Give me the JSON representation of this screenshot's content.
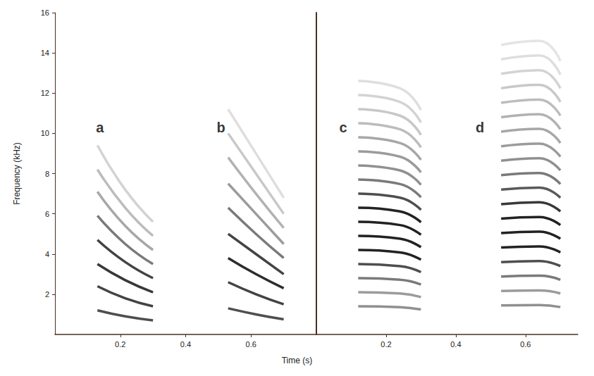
{
  "chart_data": [
    {
      "type": "line",
      "ylabel": "Frequency (kHz)",
      "xlabel": "Time (s)",
      "xlim": [
        0,
        0.8
      ],
      "xticks": [
        0.2,
        0.4,
        0.6
      ],
      "ylim": [
        0,
        16
      ],
      "yticks": [
        2,
        4,
        6,
        8,
        10,
        12,
        14,
        16
      ],
      "grid": false,
      "color": "#222222",
      "calls": [
        {
          "label": "a",
          "label_x": 0.1375,
          "label_y": 10.3,
          "x": [
            0.13,
            0.215,
            0.3
          ],
          "harmonics": [
            {
              "values": [
                1.2,
                0.9,
                0.7
              ],
              "level": 0.8
            },
            {
              "values": [
                2.4,
                1.8,
                1.4
              ],
              "level": 0.85
            },
            {
              "values": [
                3.5,
                2.7,
                2.1
              ],
              "level": 0.9
            },
            {
              "values": [
                4.7,
                3.6,
                2.8
              ],
              "level": 0.85
            },
            {
              "values": [
                5.9,
                4.5,
                3.5
              ],
              "level": 0.6
            },
            {
              "values": [
                7.1,
                5.4,
                4.2
              ],
              "level": 0.4
            },
            {
              "values": [
                8.2,
                6.3,
                4.9
              ],
              "level": 0.3
            },
            {
              "values": [
                9.4,
                7.2,
                5.6
              ],
              "level": 0.2
            }
          ]
        },
        {
          "label": "b",
          "label_x": 0.508,
          "label_y": 10.3,
          "x": [
            0.53,
            0.615,
            0.7
          ],
          "harmonics": [
            {
              "values": [
                1.3,
                1.0,
                0.75
              ],
              "level": 0.8
            },
            {
              "values": [
                2.6,
                2.0,
                1.5
              ],
              "level": 0.85
            },
            {
              "values": [
                3.8,
                3.0,
                2.3
              ],
              "level": 0.95
            },
            {
              "values": [
                5.0,
                4.0,
                3.0
              ],
              "level": 0.85
            },
            {
              "values": [
                6.3,
                5.0,
                3.8
              ],
              "level": 0.6
            },
            {
              "values": [
                7.5,
                6.0,
                4.5
              ],
              "level": 0.45
            },
            {
              "values": [
                8.8,
                7.0,
                5.3
              ],
              "level": 0.35
            },
            {
              "values": [
                10.0,
                8.0,
                6.0
              ],
              "level": 0.25
            },
            {
              "values": [
                11.2,
                9.0,
                6.8
              ],
              "level": 0.15
            }
          ]
        }
      ]
    },
    {
      "type": "line",
      "tick_labels": "x",
      "xlim": [
        0,
        0.75
      ],
      "xticks": [
        0.2,
        0.4,
        0.6
      ],
      "ylim": [
        0,
        16
      ],
      "yticks": [
        2,
        4,
        6,
        8,
        10,
        12,
        14,
        16
      ],
      "grid": false,
      "color": "#222222",
      "calls": [
        {
          "label": "c",
          "label_x": 0.077,
          "label_y": 10.3,
          "x": [
            0.12,
            0.24,
            0.3
          ],
          "harmonics": [
            {
              "values": [
                1.4,
                1.36,
                1.24
              ],
              "level": 0.5
            },
            {
              "values": [
                2.1,
                2.04,
                1.86
              ],
              "level": 0.45
            },
            {
              "values": [
                2.8,
                2.72,
                2.48
              ],
              "level": 0.6
            },
            {
              "values": [
                3.5,
                3.4,
                3.1
              ],
              "level": 0.8
            },
            {
              "values": [
                4.2,
                4.08,
                3.72
              ],
              "level": 1.0
            },
            {
              "values": [
                4.9,
                4.76,
                4.34
              ],
              "level": 1.0
            },
            {
              "values": [
                5.6,
                5.44,
                4.96
              ],
              "level": 1.0
            },
            {
              "values": [
                6.3,
                6.12,
                5.58
              ],
              "level": 1.0
            },
            {
              "values": [
                7.0,
                6.8,
                6.2
              ],
              "level": 0.8
            },
            {
              "values": [
                7.7,
                7.48,
                6.82
              ],
              "level": 0.6
            },
            {
              "values": [
                8.4,
                8.16,
                7.44
              ],
              "level": 0.5
            },
            {
              "values": [
                9.1,
                8.84,
                8.06
              ],
              "level": 0.45
            },
            {
              "values": [
                9.8,
                9.52,
                8.68
              ],
              "level": 0.4
            },
            {
              "values": [
                10.5,
                10.2,
                9.3
              ],
              "level": 0.3
            },
            {
              "values": [
                11.2,
                10.88,
                9.92
              ],
              "level": 0.25
            },
            {
              "values": [
                11.9,
                11.56,
                10.54
              ],
              "level": 0.2
            },
            {
              "values": [
                12.6,
                12.24,
                11.16
              ],
              "level": 0.15
            }
          ]
        },
        {
          "label": "d",
          "label_x": 0.469,
          "label_y": 10.3,
          "x": [
            0.53,
            0.64,
            0.7
          ],
          "harmonics": [
            {
              "values": [
                1.44,
                1.46,
                1.36
              ],
              "level": 0.5
            },
            {
              "values": [
                2.16,
                2.19,
                2.04
              ],
              "level": 0.45
            },
            {
              "values": [
                2.88,
                2.92,
                2.72
              ],
              "level": 0.6
            },
            {
              "values": [
                3.6,
                3.65,
                3.4
              ],
              "level": 0.8
            },
            {
              "values": [
                4.32,
                4.38,
                4.08
              ],
              "level": 1.0
            },
            {
              "values": [
                5.04,
                5.11,
                4.76
              ],
              "level": 1.0
            },
            {
              "values": [
                5.76,
                5.84,
                5.44
              ],
              "level": 1.0
            },
            {
              "values": [
                6.48,
                6.57,
                6.12
              ],
              "level": 0.9
            },
            {
              "values": [
                7.2,
                7.3,
                6.8
              ],
              "level": 0.75
            },
            {
              "values": [
                7.92,
                8.03,
                7.48
              ],
              "level": 0.6
            },
            {
              "values": [
                8.64,
                8.76,
                8.16
              ],
              "level": 0.5
            },
            {
              "values": [
                9.36,
                9.49,
                8.84
              ],
              "level": 0.45
            },
            {
              "values": [
                10.08,
                10.22,
                9.52
              ],
              "level": 0.4
            },
            {
              "values": [
                10.8,
                10.95,
                10.2
              ],
              "level": 0.35
            },
            {
              "values": [
                11.52,
                11.68,
                10.88
              ],
              "level": 0.3
            },
            {
              "values": [
                12.24,
                12.41,
                11.56
              ],
              "level": 0.25
            },
            {
              "values": [
                12.96,
                13.14,
                12.24
              ],
              "level": 0.2
            },
            {
              "values": [
                13.68,
                13.87,
                12.92
              ],
              "level": 0.15
            },
            {
              "values": [
                14.4,
                14.6,
                13.6
              ],
              "level": 0.12
            }
          ]
        }
      ]
    }
  ]
}
